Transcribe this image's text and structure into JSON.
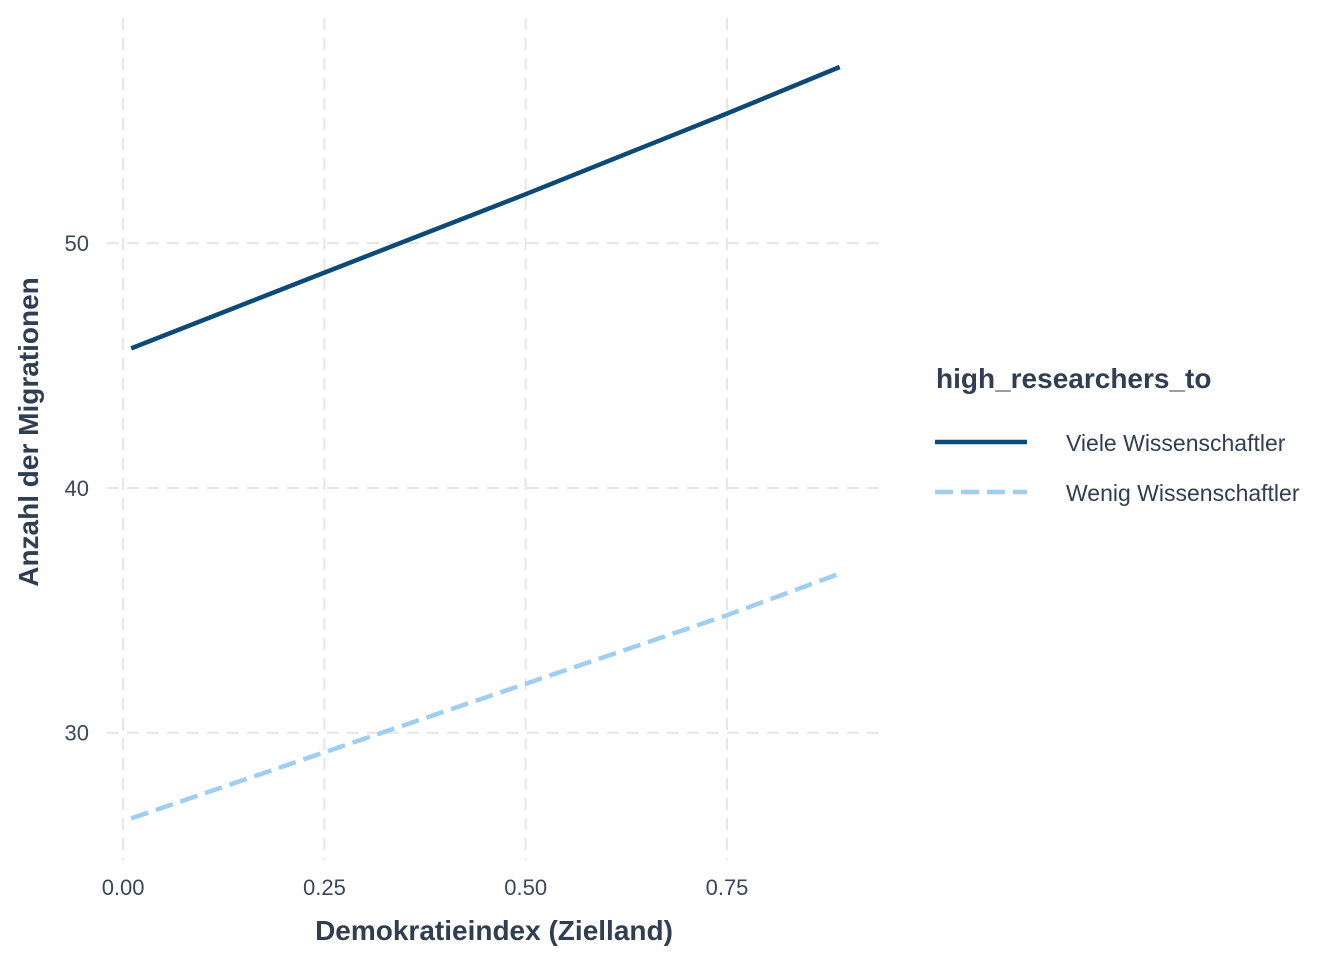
{
  "chart_data": {
    "type": "line",
    "title": "",
    "xlabel": "Demokratieindex (Zielland)",
    "ylabel": "Anzahl der Migrationen",
    "xlim": [
      -0.02,
      0.94
    ],
    "ylim": [
      24.8,
      59.2
    ],
    "x_ticks": [
      "0.00",
      "0.25",
      "0.50",
      "0.75"
    ],
    "y_ticks": [
      "30",
      "40",
      "50"
    ],
    "grid": true,
    "legend": {
      "title": "high_researchers_to",
      "position": "right"
    },
    "series": [
      {
        "name": "Viele Wissenschaftler",
        "color": "#0e4a78",
        "dash": "solid",
        "x": [
          0.01,
          0.25,
          0.5,
          0.75,
          0.89
        ],
        "y": [
          45.7,
          48.8,
          52.0,
          55.3,
          57.2
        ]
      },
      {
        "name": "Wenig Wissenschaftler",
        "color": "#9ecef2",
        "dash": "dashed",
        "x": [
          0.01,
          0.25,
          0.5,
          0.75,
          0.89
        ],
        "y": [
          26.5,
          29.2,
          32.0,
          34.8,
          36.5
        ]
      }
    ]
  }
}
